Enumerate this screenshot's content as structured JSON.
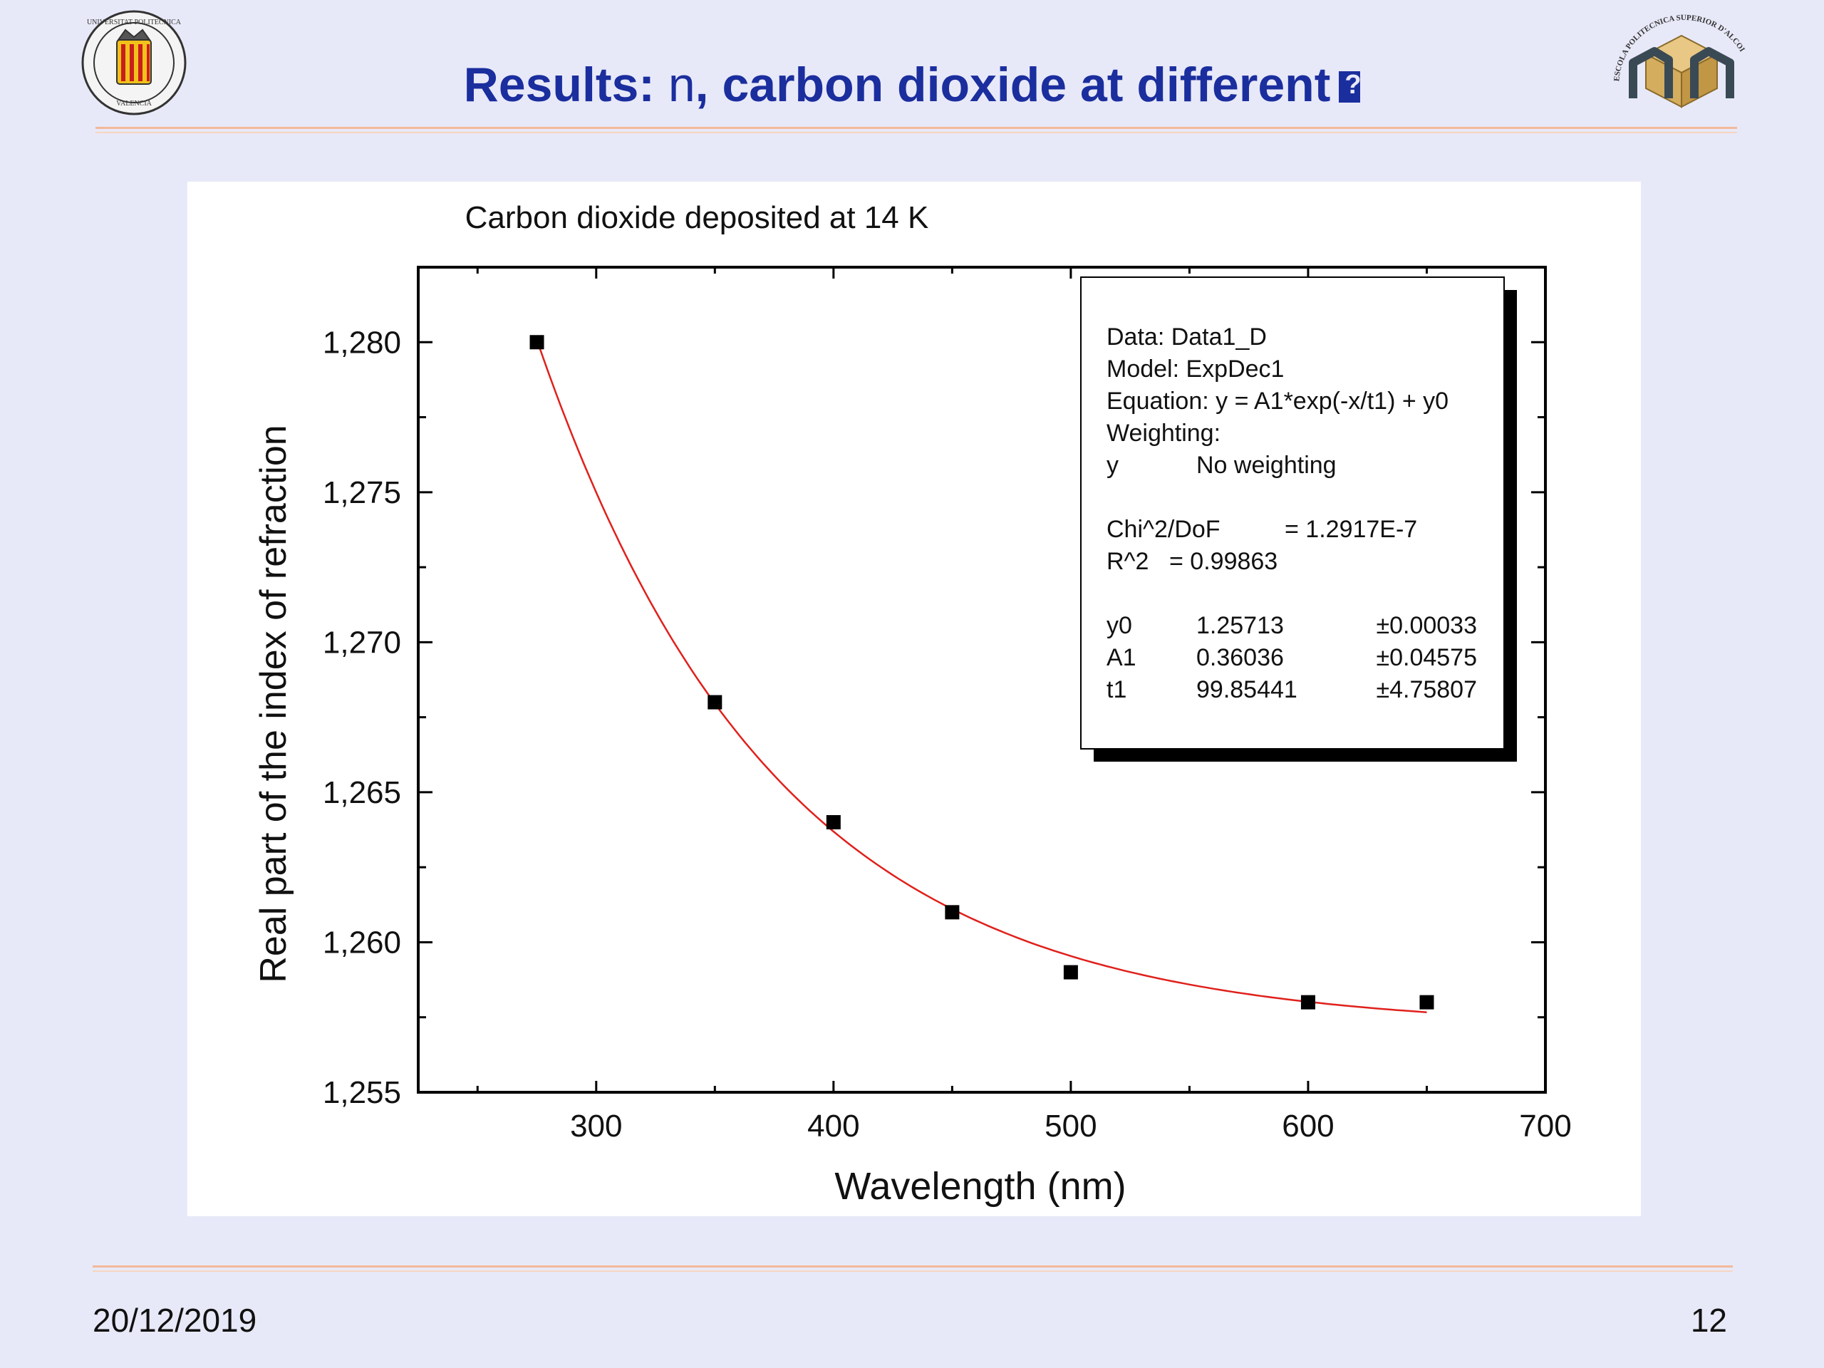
{
  "slide": {
    "title_prefix": "Results: ",
    "title_n": "n",
    "title_rest": ", carbon dioxide at different",
    "title_glyph": "?",
    "date": "20/12/2019",
    "page_number": "12"
  },
  "logos": {
    "left": {
      "text_top": "UNIVERSITAT POLITECNICA",
      "text_bottom": "VALENCIA"
    },
    "right": {
      "text_arc": "ESCOLA POLITECNICA SUPERIOR D'ALCOI"
    }
  },
  "colors": {
    "title": "#1b2e9e",
    "background": "#e8e9f8",
    "rule": "#f2b99a",
    "fit_line": "#e0201b",
    "points": "#000000"
  },
  "chart_data": {
    "type": "scatter",
    "title": "Carbon dioxide deposited at 14 K",
    "xlabel": "Wavelength (nm)",
    "ylabel": "Real part of the index of refraction",
    "xlim": [
      225,
      700
    ],
    "ylim": [
      1.255,
      1.2825
    ],
    "x_ticks": [
      300,
      400,
      500,
      600,
      700
    ],
    "y_ticks": [
      1.255,
      1.26,
      1.265,
      1.27,
      1.275,
      1.28
    ],
    "y_tick_labels": [
      "1,255",
      "1,260",
      "1,265",
      "1,270",
      "1,275",
      "1,280"
    ],
    "grid": false,
    "series": [
      {
        "x": [
          275,
          350,
          400,
          450,
          500,
          600,
          650
        ],
        "y": [
          1.28,
          1.268,
          1.264,
          1.261,
          1.259,
          1.258,
          1.258
        ]
      }
    ],
    "fit": {
      "model": "ExpDec1",
      "y0": 1.25713,
      "A1": 0.36036,
      "t1": 99.85441,
      "x_range": [
        275,
        650
      ]
    },
    "annotation_box": {
      "lines": [
        [
          "Data: Data1_D"
        ],
        [
          "Model: ExpDec1"
        ],
        [
          "Equation: y = A1*exp(-x/t1) + y0"
        ],
        [
          "Weighting:"
        ],
        [
          "y",
          "No weighting"
        ],
        [
          ""
        ],
        [
          "Chi^2/DoF",
          "= 1.2917E-7"
        ],
        [
          "R^2",
          "=  0.99863"
        ],
        [
          ""
        ],
        [
          "y0",
          "1.25713",
          "±0.00033"
        ],
        [
          "A1",
          "0.36036",
          "±0.04575"
        ],
        [
          "t1",
          "99.85441",
          "±4.75807"
        ]
      ]
    }
  }
}
